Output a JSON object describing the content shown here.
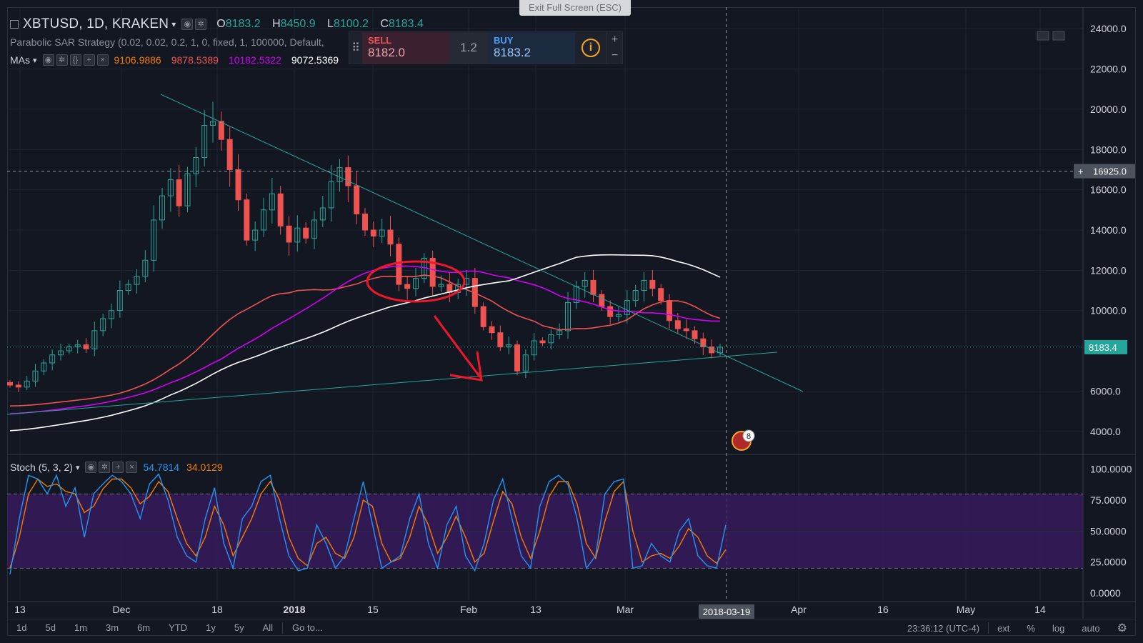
{
  "window": {
    "exit_fullscreen": "Exit Full Screen (ESC)"
  },
  "header": {
    "symbol": "XBTUSD, 1D, KRAKEN",
    "open_label": "O",
    "open": "8183.2",
    "high_label": "H",
    "high": "8450.9",
    "low_label": "L",
    "low": "8100.2",
    "close_label": "C",
    "close": "8183.4"
  },
  "indicators": {
    "psar": "Parabolic SAR Strategy (0.02, 0.02, 0.2, 1, 0, fixed, 1, 100000, Default,",
    "mas_label": "MAs",
    "ma_values": [
      {
        "value": "9106.9886",
        "color": "#f57c00"
      },
      {
        "value": "9878.5389",
        "color": "#ef5350"
      },
      {
        "value": "10182.5322",
        "color": "#d500f9"
      },
      {
        "value": "9072.5369",
        "color": "#ffffff"
      }
    ],
    "stoch_label": "Stoch (5, 3, 2)",
    "stoch_k": "54.7814",
    "stoch_d": "34.0129",
    "stoch_k_color": "#2196f3",
    "stoch_d_color": "#f57c00"
  },
  "trade": {
    "sell_label": "SELL",
    "sell_price": "8182.0",
    "qty": "1.2",
    "buy_label": "BUY",
    "buy_price": "8183.2",
    "info_icon": "i",
    "plus": "+",
    "minus": "−"
  },
  "price_axis": {
    "labels": [
      "24000.0",
      "22000.0",
      "20000.0",
      "18000.0",
      "16000.0",
      "14000.0",
      "12000.0",
      "10000.0",
      "6000.0",
      "4000.0"
    ],
    "crosshair_price": "16925.0",
    "last_price": "8183.4",
    "last_price_color": "#26a69a"
  },
  "stoch_axis": {
    "labels": [
      "100.0000",
      "75.0000",
      "50.0000",
      "25.0000",
      "0.0000"
    ]
  },
  "time_axis": {
    "labels": [
      "13",
      "Dec",
      "18",
      "2018",
      "15",
      "Feb",
      "13",
      "Mar",
      "Apr",
      "16",
      "May",
      "14"
    ],
    "crosshair_date": "2018-03-19"
  },
  "event_badge": "8",
  "bottom_bar": {
    "timeframes": [
      "1d",
      "5d",
      "1m",
      "3m",
      "6m",
      "YTD",
      "1y",
      "5y",
      "All"
    ],
    "goto": "Go to...",
    "clock": "23:36:12 (UTC-4)",
    "options": [
      "ext",
      "%",
      "log",
      "auto"
    ],
    "settings_icon": "gear-icon"
  },
  "chart_data": {
    "type": "candlestick",
    "symbol": "XBTUSD",
    "ylim": [
      3000,
      25000
    ],
    "series": [
      {
        "name": "XBTUSD",
        "values": [
          6300,
          6200,
          6500,
          7000,
          7400,
          7800,
          8000,
          8200,
          8300,
          8100,
          9000,
          9600,
          10000,
          11000,
          11300,
          11700,
          12500,
          14500,
          15700,
          16500,
          15200,
          16800,
          17600,
          19200,
          19400,
          18500,
          17000,
          15500,
          13500,
          14000,
          15000,
          15800,
          14200,
          13400,
          14100,
          13600,
          14500,
          15100,
          16400,
          17100,
          16200,
          14800,
          14000,
          13700,
          14000,
          13300,
          11300,
          11100,
          11600,
          12600,
          11200,
          11300,
          10900,
          11300,
          11600,
          10200,
          9200,
          8900,
          8200,
          8300,
          7000,
          7800,
          8500,
          8400,
          8800,
          9000,
          10400,
          11200,
          11500,
          10800,
          10200,
          9700,
          9800,
          10500,
          11000,
          11500,
          11100,
          10500,
          9500,
          9100,
          9000,
          8600,
          8200,
          7900,
          8183
        ]
      },
      {
        "name": "MA (9878.5389)",
        "values": []
      },
      {
        "name": "MA (10182.5322)",
        "values": []
      },
      {
        "name": "MA (9072.5369)",
        "values": []
      }
    ],
    "stoch_k": [
      15,
      60,
      95,
      92,
      80,
      95,
      70,
      85,
      45,
      80,
      88,
      95,
      90,
      80,
      60,
      88,
      96,
      75,
      45,
      30,
      25,
      60,
      85,
      40,
      20,
      60,
      70,
      90,
      95,
      60,
      30,
      18,
      20,
      55,
      40,
      20,
      30,
      60,
      90,
      55,
      20,
      25,
      30,
      60,
      80,
      40,
      20,
      55,
      70,
      30,
      18,
      40,
      75,
      92,
      60,
      30,
      20,
      70,
      90,
      95,
      88,
      60,
      20,
      30,
      80,
      90,
      92,
      20,
      22,
      40,
      30,
      25,
      50,
      60,
      30,
      22,
      20,
      55
    ],
    "stoch_d": [
      20,
      45,
      80,
      92,
      86,
      88,
      82,
      80,
      65,
      70,
      84,
      92,
      92,
      85,
      72,
      78,
      90,
      82,
      60,
      40,
      30,
      45,
      70,
      55,
      30,
      45,
      60,
      80,
      90,
      75,
      45,
      28,
      22,
      40,
      45,
      32,
      28,
      45,
      75,
      70,
      40,
      25,
      28,
      45,
      70,
      55,
      32,
      45,
      62,
      45,
      25,
      32,
      58,
      82,
      72,
      45,
      28,
      50,
      78,
      90,
      90,
      72,
      40,
      28,
      58,
      82,
      90,
      50,
      25,
      30,
      32,
      28,
      38,
      52,
      45,
      30,
      24,
      35
    ],
    "annotations": [
      "trendline",
      "support line",
      "circle",
      "arrow"
    ]
  }
}
